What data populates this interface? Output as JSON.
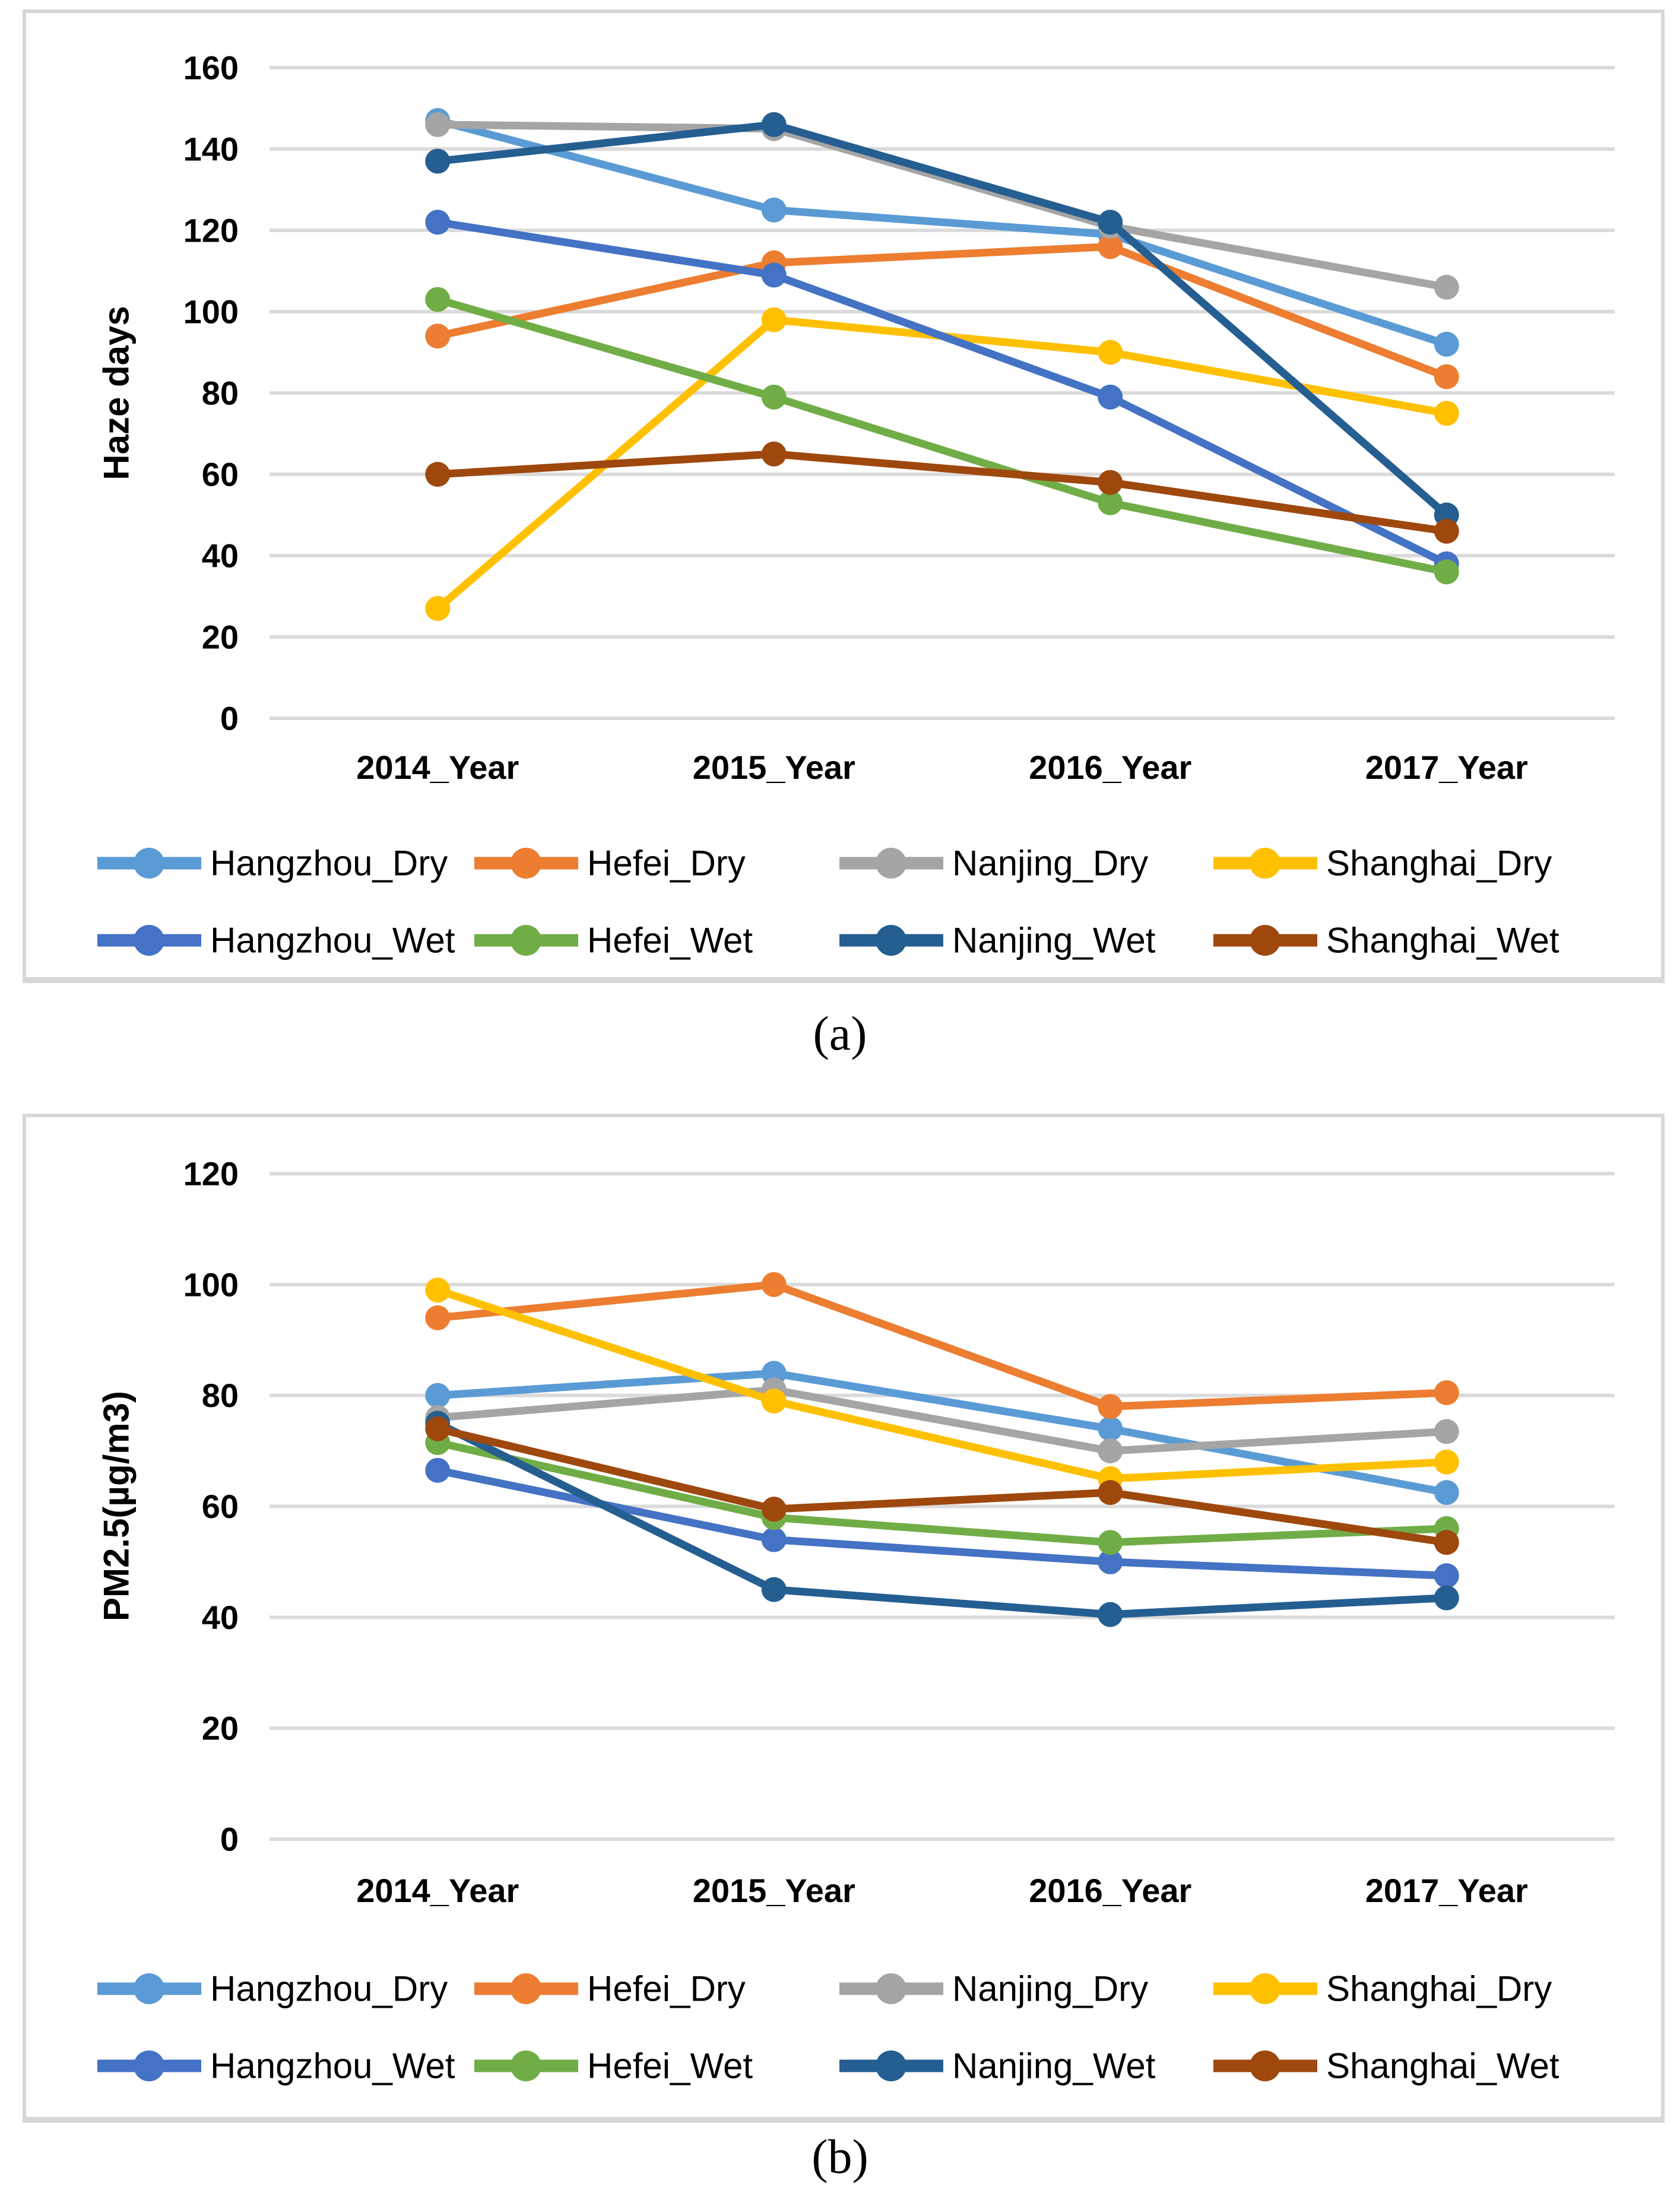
{
  "page": {
    "background": "#ffffff",
    "panel_border_color": "#d7d7d7",
    "gridline_color": "#dbdbdb",
    "text_color": "#000000"
  },
  "captions": {
    "a": "(a)",
    "b": "(b)"
  },
  "chart_data": [
    {
      "id": "a",
      "type": "line",
      "title": "",
      "ylabel": "Haze days",
      "xlabel": "",
      "caption": "(a)",
      "categories": [
        "2014_Year",
        "2015_Year",
        "2016_Year",
        "2017_Year"
      ],
      "ylim": [
        0,
        160
      ],
      "yticks": [
        0,
        20,
        40,
        60,
        80,
        100,
        120,
        140,
        160
      ],
      "grid": true,
      "legend_position": "bottom",
      "legend_rows": [
        [
          "Hangzhou_Dry",
          "Hefei_Dry",
          "Nanjing_Dry",
          "Shanghai_Dry"
        ],
        [
          "Hangzhou_Wet",
          "Hefei_Wet",
          "Nanjing_Wet",
          "Shanghai_Wet"
        ]
      ],
      "series": [
        {
          "name": "Hangzhou_Dry",
          "color": "#5B9BD5",
          "values": [
            147,
            125,
            119,
            92
          ]
        },
        {
          "name": "Hefei_Dry",
          "color": "#ED7D31",
          "values": [
            94,
            112,
            116,
            84
          ]
        },
        {
          "name": "Nanjing_Dry",
          "color": "#A5A5A5",
          "values": [
            146,
            145,
            121,
            106
          ]
        },
        {
          "name": "Shanghai_Dry",
          "color": "#FFC000",
          "values": [
            27,
            98,
            90,
            75
          ]
        },
        {
          "name": "Hangzhou_Wet",
          "color": "#4472C4",
          "values": [
            122,
            109,
            79,
            38
          ]
        },
        {
          "name": "Hefei_Wet",
          "color": "#70AD47",
          "values": [
            103,
            79,
            53,
            36
          ]
        },
        {
          "name": "Nanjing_Wet",
          "color": "#255E91",
          "values": [
            137,
            146,
            122,
            50
          ]
        },
        {
          "name": "Shanghai_Wet",
          "color": "#9E480E",
          "values": [
            60,
            65,
            58,
            46
          ]
        }
      ]
    },
    {
      "id": "b",
      "type": "line",
      "title": "",
      "ylabel": "PM2.5(µg/m3)",
      "xlabel": "",
      "caption": "(b)",
      "categories": [
        "2014_Year",
        "2015_Year",
        "2016_Year",
        "2017_Year"
      ],
      "ylim": [
        0,
        120
      ],
      "yticks": [
        0,
        20,
        40,
        60,
        80,
        100,
        120
      ],
      "grid": true,
      "legend_position": "bottom",
      "legend_rows": [
        [
          "Hangzhou_Dry",
          "Hefei_Dry",
          "Nanjing_Dry",
          "Shanghai_Dry"
        ],
        [
          "Hangzhou_Wet",
          "Hefei_Wet",
          "Nanjing_Wet",
          "Shanghai_Wet"
        ]
      ],
      "series": [
        {
          "name": "Hangzhou_Dry",
          "color": "#5B9BD5",
          "values": [
            80,
            84,
            74,
            62.5
          ]
        },
        {
          "name": "Hefei_Dry",
          "color": "#ED7D31",
          "values": [
            94,
            100,
            78,
            80.5
          ]
        },
        {
          "name": "Nanjing_Dry",
          "color": "#A5A5A5",
          "values": [
            76,
            81,
            70,
            73.5
          ]
        },
        {
          "name": "Shanghai_Dry",
          "color": "#FFC000",
          "values": [
            99,
            79,
            65,
            68
          ]
        },
        {
          "name": "Hangzhou_Wet",
          "color": "#4472C4",
          "values": [
            66.5,
            54,
            50,
            47.5
          ]
        },
        {
          "name": "Hefei_Wet",
          "color": "#70AD47",
          "values": [
            71.5,
            58,
            53.5,
            56
          ]
        },
        {
          "name": "Nanjing_Wet",
          "color": "#255E91",
          "values": [
            75,
            45,
            40.5,
            43.5
          ]
        },
        {
          "name": "Shanghai_Wet",
          "color": "#9E480E",
          "values": [
            74,
            59.5,
            62.5,
            53.5
          ]
        }
      ]
    }
  ]
}
